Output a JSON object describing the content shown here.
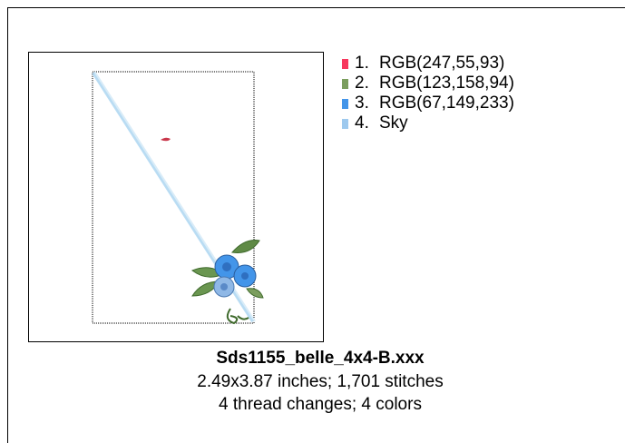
{
  "legend": {
    "items": [
      {
        "number": "1.",
        "label": "RGB(247,55,93)",
        "color": "#f7375d"
      },
      {
        "number": "2.",
        "label": "RGB(123,158,94)",
        "color": "#7b9e5e"
      },
      {
        "number": "3.",
        "label": "RGB(67,149,233)",
        "color": "#4395e9"
      },
      {
        "number": "4.",
        "label": "Sky",
        "color": "#9ec9ee"
      }
    ]
  },
  "info": {
    "filename": "Sds1155_belle_4x4-B.xxx",
    "dimensions": "2.49x3.87 inches; 1,701 stitches",
    "threads": "4 thread changes; 4 colors"
  }
}
